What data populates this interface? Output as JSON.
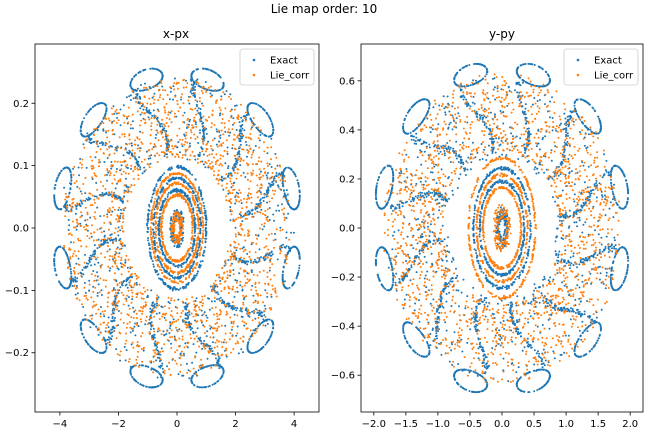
{
  "figure": {
    "suptitle": "Lie map order: 10"
  },
  "chart_data": [
    {
      "type": "scatter",
      "title": "x-px",
      "xlabel": "",
      "ylabel": "",
      "xlim": [
        -4.85,
        4.85
      ],
      "ylim": [
        -0.295,
        0.295
      ],
      "xticks": [
        -4,
        -2,
        0,
        2,
        4
      ],
      "yticks": [
        -0.2,
        -0.1,
        0.0,
        0.1,
        0.2
      ],
      "xtick_labels": [
        "−4",
        "−2",
        "0",
        "2",
        "4"
      ],
      "ytick_labels": [
        "−0.2",
        "−0.1",
        "0.0",
        "0.1",
        "0.2"
      ],
      "grid": false,
      "legend": "top-right",
      "x_max": 4.35,
      "y_max": 0.265,
      "series": [
        {
          "name": "Exact",
          "color": "#1f77b4",
          "marker": "dot",
          "structure": {
            "islands": 12,
            "outer_radius_fraction": 0.93,
            "core_rings_fraction": [
              0.23,
              0.3,
              0.37
            ],
            "inner_ellipse_fraction": [
              0.12,
              0.06
            ]
          }
        },
        {
          "name": "Lie_corr",
          "color": "#ff7f0e",
          "marker": "dot",
          "structure": {
            "chaotic_sea_fraction": [
              0.42,
              0.9
            ],
            "core_rings_fraction": [
              0.2,
              0.27,
              0.33
            ],
            "inner_ellipse_fraction": [
              0.1,
              0.05
            ]
          }
        }
      ]
    },
    {
      "type": "scatter",
      "title": "y-py",
      "xlabel": "",
      "ylabel": "",
      "xlim": [
        -2.2,
        2.2
      ],
      "ylim": [
        -0.75,
        0.75
      ],
      "xticks": [
        -2.0,
        -1.5,
        -1.0,
        -0.5,
        0.0,
        0.5,
        1.0,
        1.5,
        2.0
      ],
      "yticks": [
        -0.6,
        -0.4,
        -0.2,
        0.0,
        0.2,
        0.4,
        0.6
      ],
      "xtick_labels": [
        "−2.0",
        "−1.5",
        "−1.0",
        "−0.5",
        "0.0",
        "0.5",
        "1.0",
        "1.5",
        "2.0"
      ],
      "ytick_labels": [
        "−0.6",
        "−0.4",
        "−0.2",
        "0.0",
        "0.2",
        "0.4",
        "0.6"
      ],
      "grid": false,
      "legend": "top-right",
      "x_max": 2.0,
      "y_max": 0.68,
      "series": [
        {
          "name": "Exact",
          "color": "#1f77b4",
          "marker": "dot",
          "structure": {
            "islands": 12,
            "outer_radius_fraction": 0.95,
            "core_rings_fraction": [
              0.28,
              0.36
            ],
            "inner_ellipse_fraction": [
              0.13,
              0.05
            ]
          }
        },
        {
          "name": "Lie_corr",
          "color": "#ff7f0e",
          "marker": "dot",
          "structure": {
            "chaotic_sea_fraction": [
              0.46,
              0.93
            ],
            "core_rings_fraction": [
              0.42,
              0.32,
              0.24
            ],
            "inner_ellipse_fraction": [
              0.15,
              0.07
            ]
          }
        }
      ]
    }
  ]
}
